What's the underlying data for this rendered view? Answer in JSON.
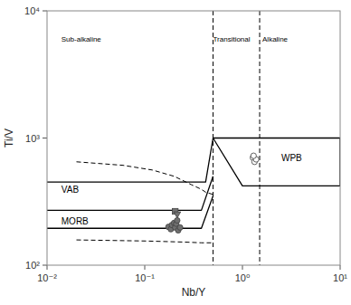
{
  "chart_data": {
    "type": "scatter",
    "log": true,
    "grid": false,
    "xlabel": "Nb/Y",
    "ylabel": "Ti/V",
    "xlim": [
      0.01,
      10
    ],
    "ylim": [
      100,
      10000
    ],
    "xticks": [
      {
        "value": 0.01,
        "label": "10⁻²"
      },
      {
        "value": 0.1,
        "label": "10⁻¹"
      },
      {
        "value": 1,
        "label": "10⁰"
      },
      {
        "value": 10,
        "label": "10¹"
      }
    ],
    "yticks": [
      {
        "value": 100,
        "label": "10²"
      },
      {
        "value": 1000,
        "label": "10³"
      },
      {
        "value": 10000,
        "label": "10⁴"
      }
    ],
    "series": [
      {
        "type": "line",
        "line_style": "solid",
        "color": "#000000",
        "x": [
          0.5,
          10,
          10,
          1.0,
          0.5
        ],
        "values": [
          1000,
          1000,
          420,
          420,
          1000
        ]
      },
      {
        "type": "line",
        "line_style": "solid",
        "color": "#000000",
        "x": [
          0.01,
          0.42,
          0.5
        ],
        "values": [
          450,
          450,
          1000
        ]
      },
      {
        "type": "line",
        "line_style": "solid",
        "color": "#000000",
        "x": [
          0.01,
          0.38,
          0.5
        ],
        "values": [
          270,
          270,
          500
        ]
      },
      {
        "type": "line",
        "line_style": "solid",
        "color": "#000000",
        "x": [
          0.01,
          0.38,
          0.5
        ],
        "values": [
          195,
          195,
          350
        ]
      },
      {
        "type": "line",
        "line_style": "dashed",
        "color": "#000000",
        "x": [
          0.02,
          0.06,
          0.12,
          0.2,
          0.3,
          0.38,
          0.42,
          0.5
        ],
        "values": [
          650,
          610,
          560,
          500,
          430,
          395,
          375,
          360
        ]
      },
      {
        "type": "line",
        "line_style": "dashed",
        "color": "#000000",
        "x": [
          0.02,
          0.1,
          0.25,
          0.38,
          0.5
        ],
        "values": [
          158,
          155,
          152,
          150,
          150
        ]
      },
      {
        "type": "scatter",
        "marker": "circle",
        "color": "#707070",
        "x": [
          0.175,
          0.185,
          0.19,
          0.2,
          0.205,
          0.21,
          0.215,
          0.22,
          0.23
        ],
        "values": [
          200,
          192,
          207,
          215,
          198,
          212,
          225,
          188,
          198
        ]
      },
      {
        "type": "scatter",
        "marker": "circle",
        "color": "#ffffff",
        "x": [
          1.28,
          1.33,
          1.38,
          1.3
        ],
        "values": [
          700,
          650,
          680,
          725
        ]
      },
      {
        "type": "scatter",
        "marker": "square",
        "color": "#707070",
        "x": [
          0.205
        ],
        "values": [
          265
        ]
      },
      {
        "type": "scatter",
        "marker": "triangle-down",
        "color": "#707070",
        "x": [
          0.215
        ],
        "values": [
          250
        ]
      }
    ],
    "vlines": [
      {
        "x": 0.5,
        "line_style": "dashed",
        "color": "#000000"
      },
      {
        "x": 1.5,
        "line_style": "dashed",
        "color": "#000000"
      }
    ],
    "annotations": [
      {
        "text": "Sub-alkaline",
        "x": 0.014,
        "y": 6000
      },
      {
        "text": "Transitional",
        "x": 0.5,
        "y": 6000
      },
      {
        "text": "Alkaline",
        "x": 1.6,
        "y": 6000
      },
      {
        "text": "WPB",
        "x": 2.5,
        "y": 700
      },
      {
        "text": "VAB",
        "x": 0.014,
        "y": 390
      },
      {
        "text": "MORB",
        "x": 0.014,
        "y": 220
      }
    ]
  }
}
